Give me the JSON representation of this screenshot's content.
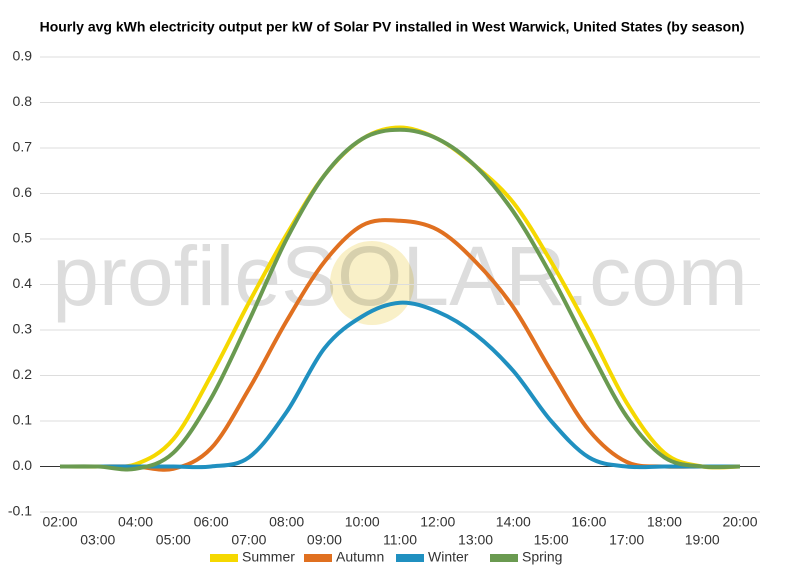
{
  "chart_data": {
    "type": "line",
    "title": "Hourly avg kWh electricity output per kW of Solar PV installed in West Warwick, United States (by season)",
    "watermark": "profileSOLAR.com",
    "categories": [
      "02:00",
      "03:00",
      "04:00",
      "05:00",
      "06:00",
      "07:00",
      "08:00",
      "09:00",
      "10:00",
      "11:00",
      "12:00",
      "13:00",
      "14:00",
      "15:00",
      "16:00",
      "17:00",
      "18:00",
      "19:00",
      "20:00"
    ],
    "series": [
      {
        "name": "Summer",
        "color": "#f5d800",
        "values": [
          0,
          0,
          0.005,
          0.06,
          0.2,
          0.36,
          0.51,
          0.64,
          0.72,
          0.745,
          0.72,
          0.66,
          0.58,
          0.45,
          0.3,
          0.14,
          0.03,
          0,
          0
        ]
      },
      {
        "name": "Autumn",
        "color": "#e07020",
        "values": [
          0,
          0,
          0,
          -0.005,
          0.04,
          0.17,
          0.32,
          0.45,
          0.53,
          0.54,
          0.52,
          0.45,
          0.35,
          0.21,
          0.08,
          0.01,
          0,
          0,
          0
        ]
      },
      {
        "name": "Winter",
        "color": "#2090c0",
        "values": [
          0,
          0,
          0,
          0,
          0,
          0.02,
          0.12,
          0.26,
          0.33,
          0.36,
          0.34,
          0.29,
          0.21,
          0.1,
          0.02,
          0,
          0,
          0,
          0
        ]
      },
      {
        "name": "Spring",
        "color": "#6a9a50",
        "values": [
          0,
          0,
          -0.005,
          0.03,
          0.15,
          0.32,
          0.5,
          0.64,
          0.72,
          0.74,
          0.72,
          0.66,
          0.56,
          0.42,
          0.26,
          0.11,
          0.02,
          0,
          0
        ]
      }
    ],
    "ylim": [
      -0.1,
      0.9
    ],
    "yticks": [
      -0.1,
      {
        "value": 0,
        "label": "0.0"
      },
      0.1,
      0.2,
      0.3,
      0.4,
      0.5,
      0.6,
      0.7,
      0.8,
      0.9
    ],
    "grid": true,
    "legend": "bottom"
  }
}
